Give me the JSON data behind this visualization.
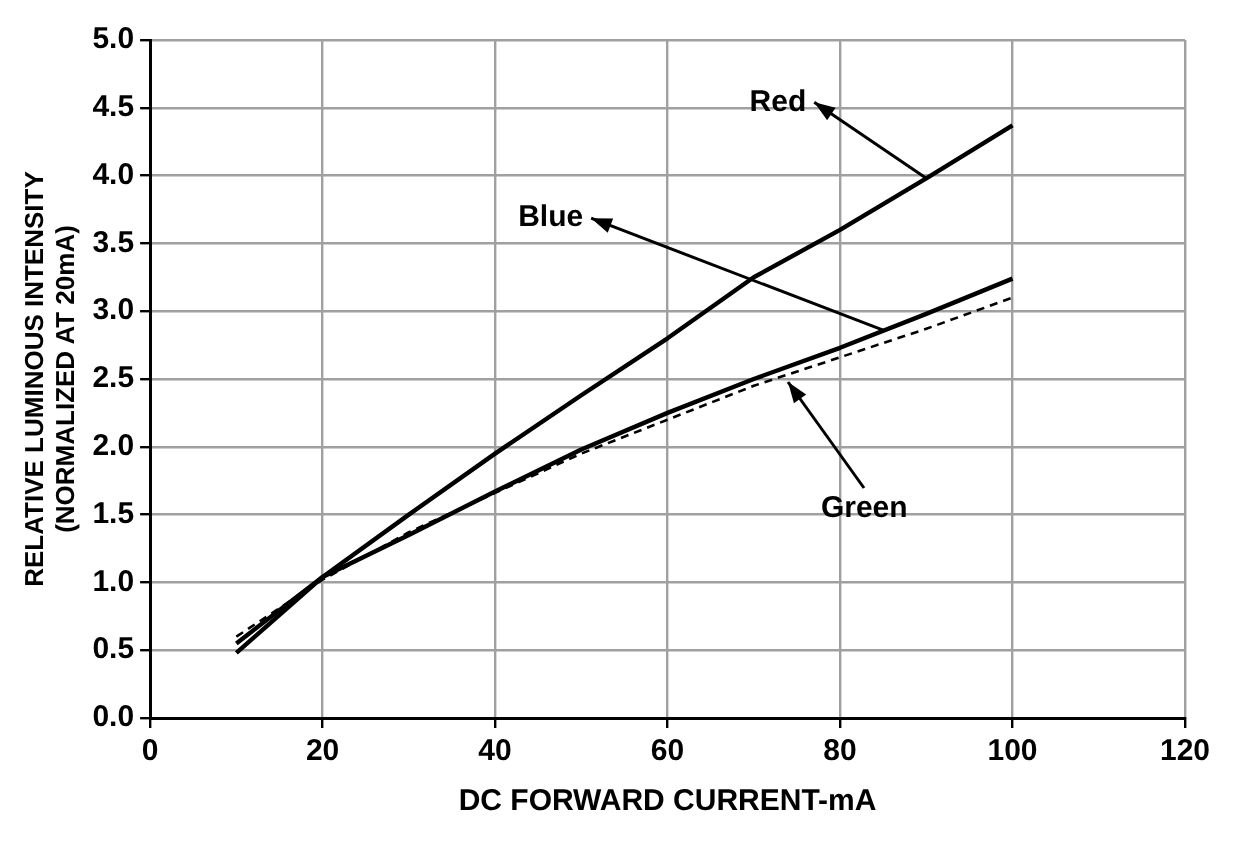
{
  "chart_data": {
    "type": "line",
    "xlabel": "DC FORWARD CURRENT-mA",
    "ylabel": "RELATIVE LUMINOUS INTENSITY\n(NORMALIZED AT 20mA)",
    "x": [
      10,
      20,
      30,
      40,
      50,
      60,
      70,
      80,
      90,
      100
    ],
    "series": [
      {
        "color": "#000000",
        "line_style": "solid",
        "values": [
          0.48,
          1.04,
          1.5,
          1.95,
          2.38,
          2.8,
          3.25,
          3.6,
          3.98,
          4.37
        ]
      },
      {
        "color": "#000000",
        "line_style": "solid",
        "values": [
          0.55,
          1.04,
          1.35,
          1.67,
          1.98,
          2.25,
          2.5,
          2.73,
          2.98,
          3.24
        ]
      },
      {
        "color": "#000000",
        "line_style": "dashed",
        "values": [
          0.6,
          1.02,
          1.37,
          1.66,
          1.95,
          2.2,
          2.45,
          2.66,
          2.87,
          3.1
        ]
      }
    ],
    "annotations": [
      {
        "text": "Red",
        "x": 90,
        "y": 3.98
      },
      {
        "text": "Blue",
        "x": 85,
        "y": 2.86
      },
      {
        "text": "Green",
        "x": 74,
        "y": 2.52
      }
    ],
    "xlim": [
      0,
      120
    ],
    "xticks": [
      0,
      20,
      40,
      60,
      80,
      100,
      120
    ],
    "ylim": [
      0,
      5
    ],
    "yticks": [
      {
        "value": 0,
        "label": "0.0"
      },
      {
        "value": 0.5,
        "label": "0.5"
      },
      {
        "value": 1,
        "label": "1.0"
      },
      {
        "value": 1.5,
        "label": "1.5"
      },
      {
        "value": 2,
        "label": "2.0"
      },
      {
        "value": 2.5,
        "label": "2.5"
      },
      {
        "value": 3,
        "label": "3.0"
      },
      {
        "value": 3.5,
        "label": "3.5"
      },
      {
        "value": 4,
        "label": "4.0"
      },
      {
        "value": 4.5,
        "label": "4.5"
      },
      {
        "value": 5,
        "label": "5.0"
      }
    ],
    "grid": true,
    "legend": false,
    "marker": "none"
  }
}
